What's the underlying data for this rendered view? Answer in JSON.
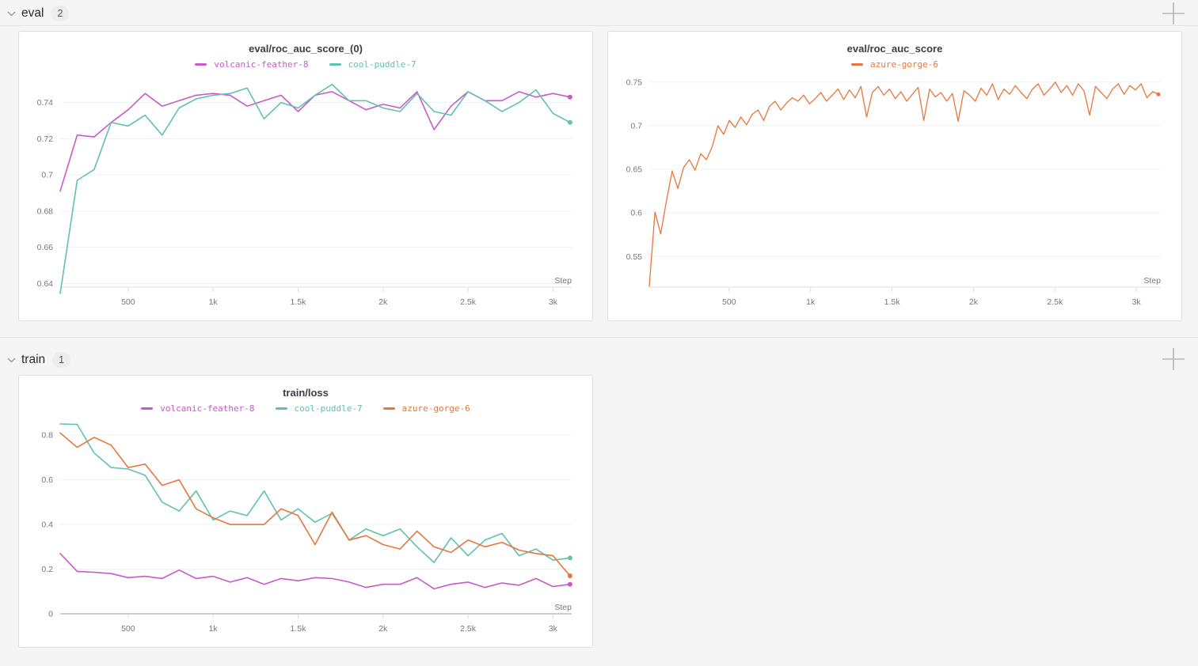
{
  "sections": [
    {
      "label": "eval",
      "count": "2"
    },
    {
      "label": "train",
      "count": "1"
    }
  ],
  "chart_data": [
    {
      "type": "line",
      "title": "eval/roc_auc_score_(0)",
      "xlabel": "Step",
      "legend_position": "top",
      "grid": true,
      "xlim": [
        100,
        3110
      ],
      "ylim": [
        0.638,
        0.7525
      ],
      "xticks": [
        {
          "v": 500,
          "label": "500"
        },
        {
          "v": 1000,
          "label": "1k"
        },
        {
          "v": 1500,
          "label": "1.5k"
        },
        {
          "v": 2000,
          "label": "2k"
        },
        {
          "v": 2500,
          "label": "2.5k"
        },
        {
          "v": 3000,
          "label": "3k"
        }
      ],
      "yticks": [
        {
          "v": 0.64,
          "label": "0.64"
        },
        {
          "v": 0.66,
          "label": "0.66"
        },
        {
          "v": 0.68,
          "label": "0.68"
        },
        {
          "v": 0.7,
          "label": "0.7"
        },
        {
          "v": 0.72,
          "label": "0.72"
        },
        {
          "v": 0.74,
          "label": "0.74"
        }
      ],
      "series": [
        {
          "name": "volcanic-feather-8",
          "color": "#C85AC8",
          "x_range": [
            100,
            3100
          ],
          "values": [
            0.691,
            0.722,
            0.721,
            0.729,
            0.736,
            0.745,
            0.738,
            0.741,
            0.744,
            0.745,
            0.744,
            0.738,
            0.741,
            0.744,
            0.735,
            0.744,
            0.746,
            0.741,
            0.736,
            0.739,
            0.737,
            0.746,
            0.725,
            0.738,
            0.746,
            0.741,
            0.741,
            0.746,
            0.743,
            0.745,
            0.743
          ]
        },
        {
          "name": "cool-puddle-7",
          "color": "#60C1AC",
          "x_range": [
            100,
            3100
          ],
          "values": [
            0.6345,
            0.697,
            0.703,
            0.729,
            0.727,
            0.733,
            0.722,
            0.737,
            0.742,
            0.744,
            0.745,
            0.748,
            0.731,
            0.74,
            0.737,
            0.744,
            0.75,
            0.741,
            0.741,
            0.737,
            0.735,
            0.745,
            0.735,
            0.733,
            0.746,
            0.741,
            0.735,
            0.74,
            0.747,
            0.734,
            0.729
          ]
        }
      ]
    },
    {
      "type": "line",
      "title": "eval/roc_auc_score",
      "xlabel": "Step",
      "legend_position": "top",
      "grid": true,
      "xlim": [
        10,
        3150
      ],
      "ylim": [
        0.515,
        0.7525
      ],
      "xticks": [
        {
          "v": 500,
          "label": "500"
        },
        {
          "v": 1000,
          "label": "1k"
        },
        {
          "v": 1500,
          "label": "1.5k"
        },
        {
          "v": 2000,
          "label": "2k"
        },
        {
          "v": 2500,
          "label": "2.5k"
        },
        {
          "v": 3000,
          "label": "3k"
        }
      ],
      "yticks": [
        {
          "v": 0.55,
          "label": "0.55"
        },
        {
          "v": 0.6,
          "label": "0.6"
        },
        {
          "v": 0.65,
          "label": "0.65"
        },
        {
          "v": 0.7,
          "label": "0.7"
        },
        {
          "v": 0.75,
          "label": "0.75"
        }
      ],
      "series": [
        {
          "name": "azure-gorge-6",
          "color": "#E8763C",
          "x_range": [
            10,
            3135
          ],
          "values": [
            0.516,
            0.601,
            0.576,
            0.614,
            0.648,
            0.628,
            0.652,
            0.661,
            0.649,
            0.668,
            0.661,
            0.676,
            0.7,
            0.69,
            0.706,
            0.698,
            0.71,
            0.701,
            0.713,
            0.718,
            0.706,
            0.722,
            0.728,
            0.718,
            0.726,
            0.732,
            0.728,
            0.735,
            0.725,
            0.731,
            0.738,
            0.728,
            0.735,
            0.742,
            0.73,
            0.741,
            0.732,
            0.745,
            0.71,
            0.738,
            0.745,
            0.735,
            0.742,
            0.731,
            0.739,
            0.728,
            0.736,
            0.744,
            0.706,
            0.742,
            0.733,
            0.738,
            0.728,
            0.737,
            0.705,
            0.74,
            0.735,
            0.728,
            0.743,
            0.735,
            0.748,
            0.73,
            0.742,
            0.736,
            0.746,
            0.738,
            0.731,
            0.742,
            0.748,
            0.735,
            0.742,
            0.75,
            0.738,
            0.746,
            0.735,
            0.748,
            0.74,
            0.712,
            0.745,
            0.738,
            0.731,
            0.742,
            0.748,
            0.736,
            0.746,
            0.741,
            0.748,
            0.732,
            0.739,
            0.736
          ]
        }
      ]
    },
    {
      "type": "line",
      "title": "train/loss",
      "xlabel": "Step",
      "legend_position": "top",
      "grid": true,
      "xlim": [
        100,
        3110
      ],
      "ylim": [
        0,
        0.85
      ],
      "xticks": [
        {
          "v": 500,
          "label": "500"
        },
        {
          "v": 1000,
          "label": "1k"
        },
        {
          "v": 1500,
          "label": "1.5k"
        },
        {
          "v": 2000,
          "label": "2k"
        },
        {
          "v": 2500,
          "label": "2.5k"
        },
        {
          "v": 3000,
          "label": "3k"
        }
      ],
      "yticks": [
        {
          "v": 0,
          "label": "0"
        },
        {
          "v": 0.2,
          "label": "0.2"
        },
        {
          "v": 0.4,
          "label": "0.4"
        },
        {
          "v": 0.6,
          "label": "0.6"
        },
        {
          "v": 0.8,
          "label": "0.8"
        }
      ],
      "series": [
        {
          "name": "volcanic-feather-8",
          "color": "#C85AC8",
          "x_range": [
            100,
            3100
          ],
          "values": [
            0.27,
            0.19,
            0.186,
            0.18,
            0.162,
            0.168,
            0.158,
            0.196,
            0.158,
            0.168,
            0.142,
            0.162,
            0.132,
            0.158,
            0.148,
            0.162,
            0.158,
            0.142,
            0.118,
            0.132,
            0.132,
            0.162,
            0.112,
            0.132,
            0.142,
            0.118,
            0.138,
            0.128,
            0.158,
            0.122,
            0.132
          ]
        },
        {
          "name": "cool-puddle-7",
          "color": "#60C1AC",
          "x_range": [
            100,
            3100
          ],
          "values": [
            0.85,
            0.848,
            0.72,
            0.655,
            0.648,
            0.62,
            0.5,
            0.46,
            0.55,
            0.42,
            0.46,
            0.44,
            0.55,
            0.42,
            0.47,
            0.41,
            0.45,
            0.33,
            0.38,
            0.35,
            0.38,
            0.3,
            0.23,
            0.34,
            0.26,
            0.33,
            0.36,
            0.26,
            0.29,
            0.24,
            0.25
          ]
        },
        {
          "name": "azure-gorge-6",
          "color": "#E8763C",
          "x_range": [
            100,
            3100
          ],
          "values": [
            0.81,
            0.745,
            0.79,
            0.755,
            0.655,
            0.67,
            0.575,
            0.6,
            0.47,
            0.43,
            0.4,
            0.4,
            0.4,
            0.47,
            0.44,
            0.31,
            0.455,
            0.33,
            0.35,
            0.31,
            0.29,
            0.37,
            0.3,
            0.275,
            0.33,
            0.3,
            0.32,
            0.285,
            0.27,
            0.26,
            0.17
          ]
        }
      ]
    }
  ]
}
